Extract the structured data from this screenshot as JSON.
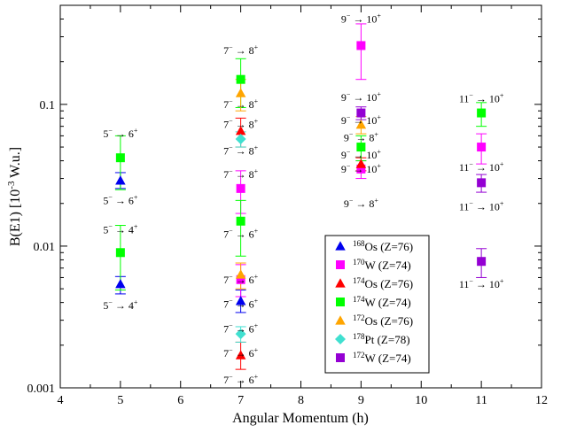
{
  "chart_data": {
    "type": "scatter",
    "xlabel": "Angular Momentum (h)",
    "ylabel_main": "B(E1) [10",
    "ylabel_sup": "-3",
    "ylabel_tail": " W.u.]",
    "xlim": [
      4,
      12
    ],
    "ylim": [
      0.001,
      0.5
    ],
    "yscale": "log",
    "x_ticks": [
      "4",
      "5",
      "6",
      "7",
      "8",
      "9",
      "10",
      "11",
      "12"
    ],
    "x_tick_values": [
      4,
      5,
      6,
      7,
      8,
      9,
      10,
      11,
      12
    ],
    "y_ticks": [
      "0.001",
      "0.01",
      "0.1"
    ],
    "y_tick_values": [
      0.001,
      0.01,
      0.1
    ],
    "legend_position": "bottom-right",
    "series": [
      {
        "name_sup": "168",
        "name_tail": "Os (Z=76)",
        "color": "#0000ee",
        "marker": "triangle",
        "points": [
          {
            "x": 5,
            "y": 0.029,
            "lo": 0.0255,
            "hi": 0.033
          },
          {
            "x": 5,
            "y": 0.0054,
            "lo": 0.0046,
            "hi": 0.0061
          },
          {
            "x": 7,
            "y": 0.0041,
            "lo": 0.0034,
            "hi": 0.0049
          }
        ]
      },
      {
        "name_sup": "170",
        "name_tail": "W (Z=74)",
        "color": "#ff00ff",
        "marker": "square",
        "points": [
          {
            "x": 9,
            "y": 0.26,
            "lo": 0.15,
            "hi": 0.37
          },
          {
            "x": 9,
            "y": 0.035,
            "lo": 0.03,
            "hi": 0.04
          },
          {
            "x": 11,
            "y": 0.05,
            "lo": 0.038,
            "hi": 0.062
          },
          {
            "x": 7,
            "y": 0.0255,
            "lo": 0.017,
            "hi": 0.034
          },
          {
            "x": 7,
            "y": 0.0058,
            "lo": 0.0044,
            "hi": 0.0074
          }
        ]
      },
      {
        "name_sup": "174",
        "name_tail": "Os (Z=76)",
        "color": "#ff0000",
        "marker": "triangle",
        "points": [
          {
            "x": 9,
            "y": 0.038,
            "lo": 0.034,
            "hi": 0.042
          },
          {
            "x": 7,
            "y": 0.065,
            "lo": 0.05,
            "hi": 0.08
          },
          {
            "x": 7,
            "y": 0.0017,
            "lo": 0.00135,
            "hi": 0.0021
          }
        ]
      },
      {
        "name_sup": "174",
        "name_tail": "W (Z=74)",
        "color": "#00ff00",
        "marker": "square",
        "points": [
          {
            "x": 5,
            "y": 0.042,
            "lo": 0.025,
            "hi": 0.06
          },
          {
            "x": 5,
            "y": 0.009,
            "lo": 0.0049,
            "hi": 0.014
          },
          {
            "x": 7,
            "y": 0.15,
            "lo": 0.095,
            "hi": 0.21
          },
          {
            "x": 7,
            "y": 0.015,
            "lo": 0.0085,
            "hi": 0.021
          },
          {
            "x": 9,
            "y": 0.05,
            "lo": 0.04,
            "hi": 0.06
          },
          {
            "x": 11,
            "y": 0.087,
            "lo": 0.07,
            "hi": 0.103
          }
        ]
      },
      {
        "name_sup": "172",
        "name_tail": "Os (Z=76)",
        "color": "#ffa500",
        "marker": "triangle",
        "points": [
          {
            "x": 7,
            "y": 0.12,
            "lo": 0.09,
            "hi": 0.15
          },
          {
            "x": 7,
            "y": 0.0063,
            "lo": 0.005,
            "hi": 0.0076
          },
          {
            "x": 9,
            "y": 0.072,
            "lo": 0.062,
            "hi": 0.082
          }
        ]
      },
      {
        "name_sup": "178",
        "name_tail": "Pt (Z=78)",
        "color": "#40e0d0",
        "marker": "diamond",
        "points": [
          {
            "x": 7,
            "y": 0.057,
            "lo": 0.05,
            "hi": 0.064
          },
          {
            "x": 7,
            "y": 0.0024,
            "lo": 0.0021,
            "hi": 0.0027
          }
        ]
      },
      {
        "name_sup": "172",
        "name_tail": "W (Z=74)",
        "color": "#9400d3",
        "marker": "square",
        "points": [
          {
            "x": 9,
            "y": 0.087,
            "lo": 0.078,
            "hi": 0.096
          },
          {
            "x": 11,
            "y": 0.028,
            "lo": 0.024,
            "hi": 0.032
          },
          {
            "x": 11,
            "y": 0.0078,
            "lo": 0.006,
            "hi": 0.0096
          }
        ]
      }
    ],
    "annotations": [
      {
        "x": 5,
        "y": 0.062,
        "i": "5",
        "ip": "−",
        "f": "6",
        "fp": "+"
      },
      {
        "x": 5,
        "y": 0.021,
        "i": "5",
        "ip": "−",
        "f": "6",
        "fp": "+"
      },
      {
        "x": 5,
        "y": 0.013,
        "i": "5",
        "ip": "−",
        "f": "4",
        "fp": "+"
      },
      {
        "x": 5,
        "y": 0.0038,
        "i": "5",
        "ip": "−",
        "f": "4",
        "fp": "+"
      },
      {
        "x": 7,
        "y": 0.24,
        "i": "7",
        "ip": "−",
        "f": "8",
        "fp": "+"
      },
      {
        "x": 7,
        "y": 0.1,
        "i": "7",
        "ip": "−",
        "f": "8",
        "fp": "+"
      },
      {
        "x": 7,
        "y": 0.072,
        "i": "7",
        "ip": "−",
        "f": "8",
        "fp": "+"
      },
      {
        "x": 7,
        "y": 0.047,
        "i": "7",
        "ip": "−",
        "f": "8",
        "fp": "+"
      },
      {
        "x": 7,
        "y": 0.032,
        "i": "7",
        "ip": "−",
        "f": "8",
        "fp": "+"
      },
      {
        "x": 7,
        "y": 0.0121,
        "i": "7",
        "ip": "−",
        "f": "6",
        "fp": "+"
      },
      {
        "x": 7,
        "y": 0.0058,
        "i": "7",
        "ip": "−",
        "f": "6",
        "fp": "+"
      },
      {
        "x": 7,
        "y": 0.0039,
        "i": "7",
        "ip": "−",
        "f": "6",
        "fp": "+"
      },
      {
        "x": 7,
        "y": 0.0026,
        "i": "7",
        "ip": "−",
        "f": "6",
        "fp": "+"
      },
      {
        "x": 7,
        "y": 0.00175,
        "i": "7",
        "ip": "−",
        "f": "6",
        "fp": "+"
      },
      {
        "x": 7,
        "y": 0.00114,
        "i": "7",
        "ip": "−",
        "f": "6",
        "fp": "+"
      },
      {
        "x": 9,
        "y": 0.4,
        "i": "9",
        "ip": "−",
        "f": "10",
        "fp": "+"
      },
      {
        "x": 9,
        "y": 0.112,
        "i": "9",
        "ip": "−",
        "f": "10",
        "fp": "+"
      },
      {
        "x": 9,
        "y": 0.077,
        "i": "9",
        "ip": "−",
        "f": "10",
        "fp": "+"
      },
      {
        "x": 9,
        "y": 0.058,
        "i": "9",
        "ip": "−",
        "f": "8",
        "fp": "+"
      },
      {
        "x": 9,
        "y": 0.044,
        "i": "9",
        "ip": "−",
        "f": "10",
        "fp": "+"
      },
      {
        "x": 9,
        "y": 0.035,
        "i": "9",
        "ip": "−",
        "f": "10",
        "fp": "+"
      },
      {
        "x": 9,
        "y": 0.02,
        "i": "9",
        "ip": "−",
        "f": "8",
        "fp": "+"
      },
      {
        "x": 11,
        "y": 0.11,
        "i": "11",
        "ip": "−",
        "f": "10",
        "fp": "+"
      },
      {
        "x": 11,
        "y": 0.036,
        "i": "11",
        "ip": "−",
        "f": "10",
        "fp": "+"
      },
      {
        "x": 11,
        "y": 0.019,
        "i": "11",
        "ip": "−",
        "f": "10",
        "fp": "+"
      },
      {
        "x": 11,
        "y": 0.0054,
        "i": "11",
        "ip": "−",
        "f": "10",
        "fp": "+"
      }
    ]
  }
}
